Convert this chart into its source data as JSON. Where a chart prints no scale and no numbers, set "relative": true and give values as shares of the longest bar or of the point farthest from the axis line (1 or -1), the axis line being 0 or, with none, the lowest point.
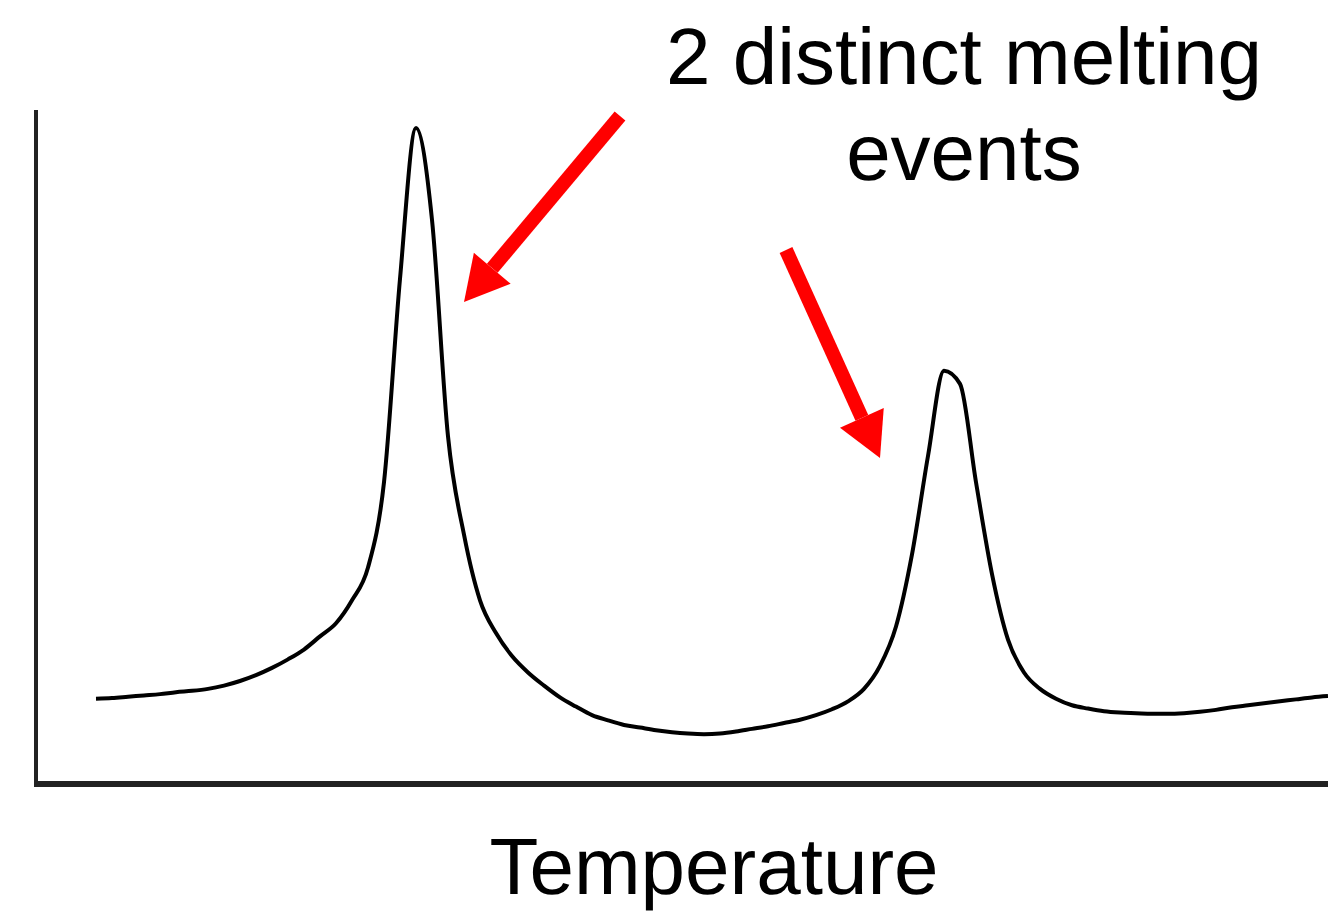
{
  "chart_data": {
    "type": "line",
    "relative": true,
    "xlabel": "Temperature",
    "annotations": [
      "2 distinct melting events"
    ],
    "categories": [
      null,
      null,
      null,
      null,
      null,
      null,
      null,
      null,
      null,
      null,
      null,
      null,
      null,
      null,
      null,
      null,
      null,
      null,
      null,
      null,
      null,
      null,
      null,
      null,
      null,
      null,
      null,
      null,
      null,
      null,
      null,
      null,
      null,
      null,
      null,
      null,
      null,
      null,
      null,
      null,
      null,
      null,
      null,
      null,
      null,
      null,
      null,
      null,
      null,
      null,
      null,
      null,
      null,
      null,
      null,
      null,
      null,
      null,
      null,
      null,
      null,
      null,
      null,
      null,
      null,
      null,
      null,
      null,
      null,
      null,
      null,
      null,
      null,
      null,
      null,
      null,
      null,
      null
    ],
    "series": [
      {
        "color": "#000000",
        "values": [
          0.13,
          0.131,
          0.133,
          0.135,
          0.137,
          0.14,
          0.142,
          0.145,
          0.15,
          0.157,
          0.166,
          0.177,
          0.19,
          0.205,
          0.225,
          0.245,
          0.28,
          0.33,
          0.46,
          0.77,
          1,
          0.86,
          0.53,
          0.38,
          0.28,
          0.23,
          0.195,
          0.17,
          0.15,
          0.132,
          0.118,
          0.105,
          0.097,
          0.09,
          0.086,
          0.082,
          0.079,
          0.077,
          0.076,
          0.077,
          0.08,
          0.084,
          0.088,
          0.093,
          0.098,
          0.105,
          0.114,
          0.126,
          0.145,
          0.18,
          0.24,
          0.35,
          0.5,
          0.63,
          0.61,
          0.46,
          0.32,
          0.22,
          0.17,
          0.145,
          0.13,
          0.12,
          0.115,
          0.111,
          0.109,
          0.108,
          0.107,
          0.107,
          0.108,
          0.11,
          0.113,
          0.117,
          0.12,
          0.123,
          0.126,
          0.129,
          0.132,
          0.134
        ]
      }
    ],
    "marker": "none",
    "line_style": "solid"
  }
}
